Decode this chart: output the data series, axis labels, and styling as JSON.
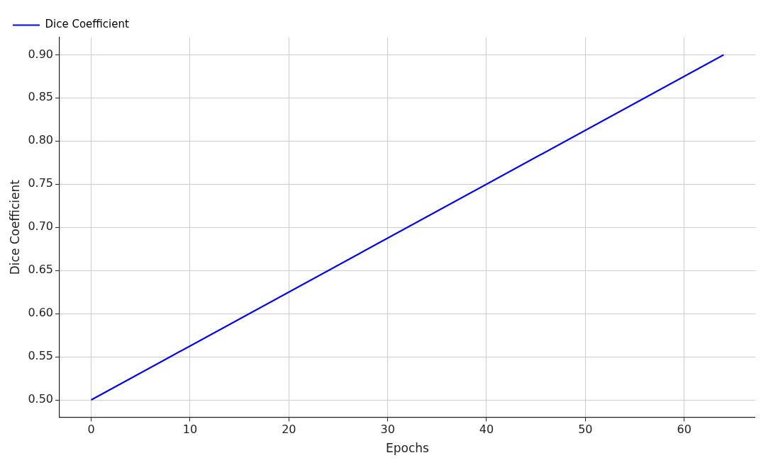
{
  "chart_data": {
    "type": "line",
    "xlabel": "Epochs",
    "ylabel": "Dice Coefficient",
    "x": [
      0,
      64
    ],
    "series": [
      {
        "name": "Dice Coefficient",
        "color": "#0000ff",
        "values": [
          0.5,
          0.9
        ]
      }
    ],
    "xlim": [
      -3.2,
      67.2
    ],
    "xticks": [
      0,
      10,
      20,
      30,
      40,
      50,
      60
    ],
    "ylim": [
      0.48,
      0.92
    ],
    "yticks": [
      {
        "value": 0.5,
        "label": "0.50"
      },
      {
        "value": 0.55,
        "label": "0.55"
      },
      {
        "value": 0.6,
        "label": "0.60"
      },
      {
        "value": 0.65,
        "label": "0.65"
      },
      {
        "value": 0.7,
        "label": "0.70"
      },
      {
        "value": 0.75,
        "label": "0.75"
      },
      {
        "value": 0.8,
        "label": "0.80"
      },
      {
        "value": 0.85,
        "label": "0.85"
      },
      {
        "value": 0.9,
        "label": "0.90"
      }
    ],
    "grid": true,
    "legend": "top left",
    "marker": "none",
    "line_style": "solid"
  }
}
